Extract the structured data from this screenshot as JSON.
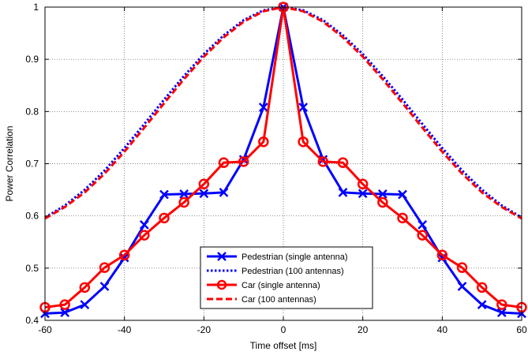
{
  "chart_data": {
    "type": "line",
    "title": "",
    "xlabel": "Time offset [ms]",
    "ylabel": "Power Correlation",
    "xlim": [
      -60,
      60
    ],
    "ylim": [
      0.4,
      1
    ],
    "xticks": [
      -60,
      -40,
      -20,
      0,
      20,
      40,
      60
    ],
    "yticks": [
      0.4,
      0.5,
      0.6,
      0.7,
      0.8,
      0.9,
      1
    ],
    "xtick_labels": [
      "-60",
      "-40",
      "-20",
      "0",
      "20",
      "40",
      "60"
    ],
    "ytick_labels": [
      "0.4",
      "0.5",
      "0.6",
      "0.7",
      "0.8",
      "0.9",
      "1"
    ],
    "grid": true,
    "legend_position": "bottom-center",
    "series": [
      {
        "name": "Pedestrian (single antenna)",
        "color": "#0000ff",
        "style": "solid",
        "marker": "x",
        "x": [
          -60,
          -55,
          -50,
          -45,
          -40,
          -35,
          -30,
          -25,
          -20,
          -15,
          -10,
          -5,
          0,
          5,
          10,
          15,
          20,
          25,
          30,
          35,
          40,
          45,
          50,
          55,
          60
        ],
        "y": [
          0.413,
          0.415,
          0.43,
          0.465,
          0.52,
          0.583,
          0.641,
          0.642,
          0.643,
          0.645,
          0.708,
          0.808,
          1.0,
          0.808,
          0.708,
          0.645,
          0.643,
          0.642,
          0.641,
          0.583,
          0.52,
          0.465,
          0.43,
          0.415,
          0.413
        ]
      },
      {
        "name": "Pedestrian (100 antennas)",
        "color": "#0000ff",
        "style": "dotted",
        "x": [
          -60,
          -55,
          -50,
          -45,
          -40,
          -35,
          -30,
          -25,
          -20,
          -15,
          -10,
          -5,
          0,
          5,
          10,
          15,
          20,
          25,
          30,
          35,
          40,
          45,
          50,
          55,
          60
        ],
        "y": [
          0.597,
          0.62,
          0.65,
          0.687,
          0.73,
          0.776,
          0.823,
          0.868,
          0.91,
          0.946,
          0.975,
          0.994,
          1.0,
          0.994,
          0.975,
          0.946,
          0.91,
          0.868,
          0.823,
          0.776,
          0.73,
          0.687,
          0.65,
          0.62,
          0.597
        ]
      },
      {
        "name": "Car (single antenna)",
        "color": "#ff0000",
        "style": "solid",
        "marker": "o",
        "x": [
          -60,
          -55,
          -50,
          -45,
          -40,
          -35,
          -30,
          -25,
          -20,
          -15,
          -10,
          -5,
          0,
          5,
          10,
          15,
          20,
          25,
          30,
          35,
          40,
          45,
          50,
          55,
          60
        ],
        "y": [
          0.425,
          0.43,
          0.463,
          0.501,
          0.525,
          0.563,
          0.596,
          0.626,
          0.661,
          0.702,
          0.704,
          0.742,
          1.0,
          0.742,
          0.704,
          0.702,
          0.661,
          0.626,
          0.596,
          0.563,
          0.525,
          0.501,
          0.463,
          0.43,
          0.425
        ]
      },
      {
        "name": "Car (100 antennas)",
        "color": "#ff0000",
        "style": "dashed",
        "x": [
          -60,
          -55,
          -50,
          -45,
          -40,
          -35,
          -30,
          -25,
          -20,
          -15,
          -10,
          -5,
          0,
          5,
          10,
          15,
          20,
          25,
          30,
          35,
          40,
          45,
          50,
          55,
          60
        ],
        "y": [
          0.595,
          0.617,
          0.645,
          0.681,
          0.723,
          0.769,
          0.816,
          0.862,
          0.905,
          0.942,
          0.972,
          0.992,
          1.0,
          0.992,
          0.972,
          0.942,
          0.905,
          0.862,
          0.816,
          0.769,
          0.723,
          0.681,
          0.645,
          0.617,
          0.595
        ]
      }
    ]
  }
}
